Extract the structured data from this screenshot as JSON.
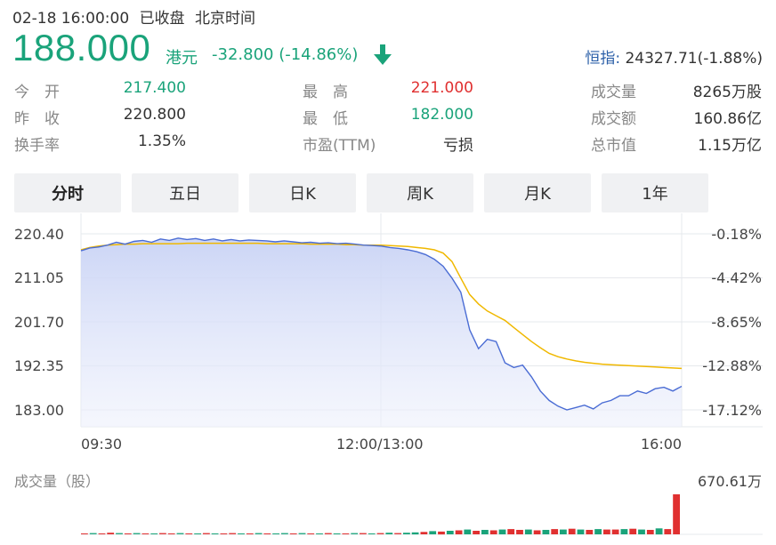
{
  "header": {
    "datetime": "02-18 16:00:00",
    "market_status": "已收盘",
    "timezone": "北京时间",
    "price": "188.000",
    "currency": "港元",
    "change": "-32.800 (-14.86%)",
    "index_label": "恒指:",
    "index_value": "24327.71(-1.88%)"
  },
  "stats": [
    {
      "label": "今　开",
      "value": "217.400",
      "color": "#1aa37a"
    },
    {
      "label": "最　高",
      "value": "221.000",
      "color": "#e03030"
    },
    {
      "label": "成交量",
      "value": "8265万股",
      "color": "#333333"
    },
    {
      "label": "昨　收",
      "value": "220.800",
      "color": "#333333"
    },
    {
      "label": "最　低",
      "value": "182.000",
      "color": "#1aa37a"
    },
    {
      "label": "成交额",
      "value": "160.86亿",
      "color": "#333333"
    },
    {
      "label": "换手率",
      "value": "1.35%",
      "color": "#333333"
    },
    {
      "label": "市盈(TTM)",
      "value": "亏损",
      "color": "#333333"
    },
    {
      "label": "总市值",
      "value": "1.15万亿",
      "color": "#333333"
    }
  ],
  "tabs": [
    "分时",
    "五日",
    "日K",
    "周K",
    "月K",
    "1年"
  ],
  "active_tab": "分时",
  "colors": {
    "down": "#1aa37a",
    "up": "#e03030",
    "price_line": "#4a6cd4",
    "avg_line": "#f0b800",
    "index_label": "#2b5fa8"
  },
  "icons": {
    "trend": "down-arrow-icon"
  },
  "chart_data": {
    "type": "line",
    "y_ticks_left": [
      "220.40",
      "211.05",
      "201.70",
      "192.35",
      "183.00"
    ],
    "y_ticks_right": [
      "-0.18%",
      "-4.42%",
      "-8.65%",
      "-12.88%",
      "-17.12%"
    ],
    "ylim": [
      183.0,
      220.4
    ],
    "x_ticks": [
      "09:30",
      "12:00/13:00",
      "16:00"
    ],
    "grid": true,
    "series": [
      {
        "values": [
          216.8,
          217.4,
          217.6,
          218.0,
          218.6,
          218.2,
          218.8,
          219.0,
          218.6,
          219.3,
          219.0,
          219.5,
          219.2,
          219.4,
          219.0,
          219.3,
          218.9,
          219.2,
          218.9,
          219.1,
          219.0,
          218.9,
          218.7,
          218.9,
          218.7,
          218.5,
          218.6,
          218.4,
          218.5,
          218.3,
          218.4,
          218.2,
          218.0,
          217.9,
          217.8,
          217.5,
          217.3,
          217.0,
          216.6,
          216.0,
          215.0,
          213.5,
          211.0,
          208.0,
          200.0,
          196.0,
          198.0,
          197.5,
          193.0,
          192.0,
          192.5,
          190.0,
          187.0,
          185.0,
          183.8,
          183.0,
          183.5,
          184.0,
          183.2,
          184.5,
          185.0,
          186.0,
          186.0,
          187.0,
          186.5,
          187.5,
          187.8,
          187.0,
          188.0
        ]
      },
      {
        "values": [
          217.0,
          217.5,
          217.8,
          218.0,
          218.1,
          218.2,
          218.2,
          218.3,
          218.3,
          218.3,
          218.3,
          218.3,
          218.4,
          218.4,
          218.4,
          218.4,
          218.4,
          218.4,
          218.4,
          218.4,
          218.4,
          218.3,
          218.3,
          218.3,
          218.3,
          218.3,
          218.2,
          218.2,
          218.2,
          218.2,
          218.1,
          218.1,
          218.0,
          218.0,
          218.0,
          217.9,
          217.8,
          217.7,
          217.5,
          217.3,
          217.0,
          216.3,
          214.5,
          211.0,
          207.5,
          205.5,
          204.0,
          203.0,
          202.0,
          200.5,
          199.0,
          197.5,
          196.2,
          195.0,
          194.3,
          193.8,
          193.4,
          193.1,
          192.9,
          192.7,
          192.6,
          192.5,
          192.4,
          192.3,
          192.2,
          192.1,
          192.0,
          191.9,
          191.8
        ]
      }
    ]
  },
  "volume": {
    "title": "成交量（股）",
    "max_label": "670.61万",
    "values": [
      2,
      3,
      2,
      4,
      3,
      2,
      3,
      2,
      2,
      3,
      2,
      3,
      2,
      2,
      3,
      2,
      2,
      3,
      2,
      2,
      3,
      2,
      2,
      3,
      2,
      3,
      2,
      2,
      3,
      2,
      2,
      3,
      3,
      2,
      3,
      4,
      3,
      4,
      5,
      6,
      8,
      7,
      9,
      10,
      12,
      9,
      11,
      10,
      12,
      13,
      11,
      12,
      10,
      11,
      13,
      12,
      14,
      12,
      11,
      13,
      12,
      12,
      13,
      14,
      12,
      11,
      15,
      13,
      100
    ],
    "up": [
      1,
      0,
      1,
      1,
      0,
      1,
      0,
      1,
      0,
      1,
      1,
      0,
      1,
      0,
      1,
      0,
      1,
      1,
      0,
      1,
      0,
      1,
      0,
      0,
      1,
      0,
      1,
      0,
      1,
      0,
      1,
      0,
      1,
      0,
      1,
      0,
      1,
      0,
      0,
      1,
      0,
      1,
      0,
      1,
      0,
      1,
      0,
      1,
      0,
      1,
      1,
      0,
      1,
      0,
      1,
      0,
      1,
      0,
      1,
      0,
      1,
      1,
      0,
      1,
      0,
      1,
      0,
      1,
      1
    ]
  }
}
